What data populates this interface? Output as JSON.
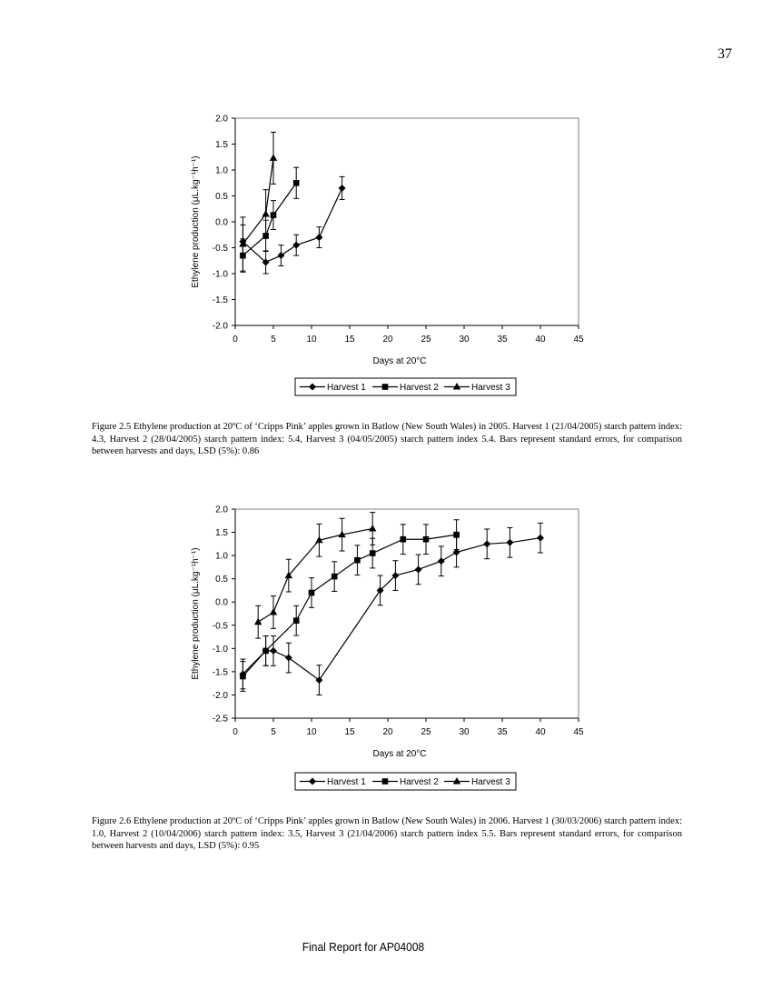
{
  "page_number": "37",
  "footer": "Final Report for AP04008",
  "figures": [
    {
      "caption": "Figure 2.5 Ethylene production at 20ºC of ‘Cripps Pink’ apples grown in Batlow (New South Wales) in 2005. Harvest 1 (21/04/2005) starch pattern index: 4.3, Harvest 2 (28/04/2005) starch pattern index: 5.4, Harvest 3 (04/05/2005) starch pattern index 5.4. Bars represent standard errors, for comparison between harvests and days, LSD (5%): 0.86"
    },
    {
      "caption": "Figure 2.6 Ethylene production at 20ºC of ‘Cripps Pink’ apples grown in Batlow (New South Wales) in 2006. Harvest 1 (30/03/2006) starch pattern index: 1.0, Harvest 2 (10/04/2006) starch pattern index: 3.5, Harvest 3 (21/04/2006) starch pattern index 5.5. Bars represent standard errors, for comparison between harvests and days, LSD (5%): 0.95"
    }
  ],
  "chart_data": [
    {
      "type": "line",
      "xlabel": "Days at 20°C",
      "ylabel": "Ethylene production (μL.kg⁻¹h⁻¹)",
      "xlim": [
        0,
        45
      ],
      "ylim": [
        -2.0,
        2.0
      ],
      "xticks": [
        "0",
        "5",
        "10",
        "15",
        "20",
        "25",
        "30",
        "35",
        "40",
        "45"
      ],
      "yticks": [
        "2.0",
        "1.5",
        "1.0",
        "0.5",
        "0.0",
        "-0.5",
        "-1.0",
        "-1.5",
        "-2.0"
      ],
      "legend_position": "bottom",
      "grid": false,
      "series": [
        {
          "name": "Harvest 1",
          "marker": "diamond",
          "x": [
            1,
            4,
            6,
            8,
            11,
            14
          ],
          "y": [
            -0.38,
            -0.78,
            -0.65,
            -0.45,
            -0.3,
            0.65
          ],
          "err": [
            0.32,
            0.22,
            0.2,
            0.2,
            0.2,
            0.22
          ]
        },
        {
          "name": "Harvest 2",
          "marker": "square",
          "x": [
            1,
            4,
            5,
            8
          ],
          "y": [
            -0.65,
            -0.27,
            0.13,
            0.75
          ],
          "err": [
            0.32,
            0.3,
            0.28,
            0.3
          ]
        },
        {
          "name": "Harvest 3",
          "marker": "triangle",
          "x": [
            1,
            4,
            5
          ],
          "y": [
            -0.43,
            0.15,
            1.23
          ],
          "err": [
            0.52,
            0.47,
            0.5
          ]
        }
      ]
    },
    {
      "type": "line",
      "xlabel": "Days at 20°C",
      "ylabel": "Ethylene production (μL.kg⁻¹h⁻¹)",
      "xlim": [
        0,
        45
      ],
      "ylim": [
        -2.5,
        2.0
      ],
      "xticks": [
        "0",
        "5",
        "10",
        "15",
        "20",
        "25",
        "30",
        "35",
        "40",
        "45"
      ],
      "yticks": [
        "2.0",
        "1.5",
        "1.0",
        "0.5",
        "0.0",
        "-0.5",
        "-1.0",
        "-1.5",
        "-2.0",
        "-2.5"
      ],
      "legend_position": "bottom",
      "grid": false,
      "series": [
        {
          "name": "Harvest 1",
          "marker": "diamond",
          "x": [
            1,
            4,
            5,
            7,
            11,
            19,
            21,
            24,
            27,
            29,
            33,
            36,
            40
          ],
          "y": [
            -1.55,
            -1.05,
            -1.05,
            -1.2,
            -1.68,
            0.25,
            0.57,
            0.7,
            0.88,
            1.07,
            1.25,
            1.28,
            1.38
          ],
          "err": [
            0.32,
            0.32,
            0.32,
            0.32,
            0.32,
            0.32,
            0.32,
            0.32,
            0.32,
            0.32,
            0.32,
            0.32,
            0.32
          ]
        },
        {
          "name": "Harvest 2",
          "marker": "square",
          "x": [
            1,
            4,
            8,
            10,
            13,
            16,
            18,
            22,
            25,
            29
          ],
          "y": [
            -1.6,
            -1.05,
            -0.4,
            0.2,
            0.55,
            0.9,
            1.05,
            1.35,
            1.35,
            1.45
          ],
          "err": [
            0.32,
            0.32,
            0.32,
            0.32,
            0.32,
            0.32,
            0.32,
            0.32,
            0.32,
            0.32
          ]
        },
        {
          "name": "Harvest 3",
          "marker": "triangle",
          "x": [
            3,
            5,
            7,
            11,
            14,
            18
          ],
          "y": [
            -0.43,
            -0.22,
            0.57,
            1.33,
            1.45,
            1.58
          ],
          "err": [
            0.35,
            0.35,
            0.35,
            0.35,
            0.35,
            0.35
          ]
        }
      ]
    }
  ]
}
